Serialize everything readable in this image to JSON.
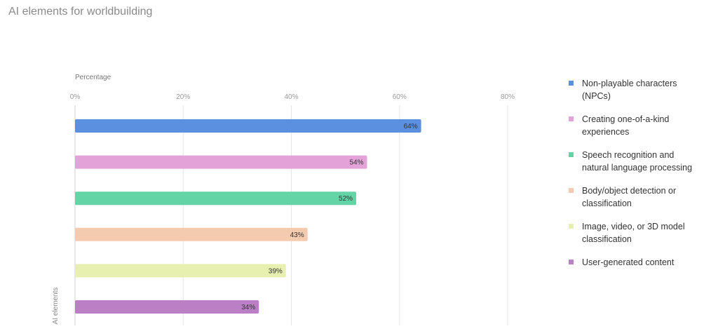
{
  "title": "AI elements for worldbuilding",
  "chart_data": {
    "type": "bar",
    "orientation": "horizontal",
    "title": "AI elements for worldbuilding",
    "xlabel": "Percentage",
    "ylabel": "AI elements",
    "xlim": [
      0,
      80
    ],
    "x_ticks": [
      "0%",
      "20%",
      "40%",
      "60%",
      "80%"
    ],
    "x_tick_values": [
      0,
      20,
      40,
      60,
      80
    ],
    "grid": true,
    "legend_position": "right",
    "categories": [
      "Non-playable characters (NPCs)",
      "Creating one-of-a-kind experiences",
      "Speech recognition and natural language processing",
      "Body/object detection or classification",
      "Image, video, or 3D model classification",
      "User-generated content"
    ],
    "values": [
      64,
      54,
      52,
      43,
      39,
      34
    ],
    "value_labels": [
      "64%",
      "54%",
      "52%",
      "43%",
      "39%",
      "34%"
    ],
    "colors": [
      "#5b8fe0",
      "#e3a3d8",
      "#63d4a5",
      "#f5cbb0",
      "#e8f0b0",
      "#ba7fc4"
    ]
  },
  "legend": [
    {
      "line1": "Non-playable characters",
      "line2": "(NPCs)",
      "color": "#5b8fe0"
    },
    {
      "line1": "Creating one-of-a-kind",
      "line2": "experiences",
      "color": "#e3a3d8"
    },
    {
      "line1": "Speech recognition and",
      "line2": "natural language processing",
      "color": "#63d4a5"
    },
    {
      "line1": "Body/object detection or",
      "line2": "classification",
      "color": "#f5cbb0"
    },
    {
      "line1": "Image, video, or 3D model",
      "line2": "classification",
      "color": "#e8f0b0"
    },
    {
      "line1": "User-generated content",
      "line2": "",
      "color": "#ba7fc4"
    }
  ]
}
